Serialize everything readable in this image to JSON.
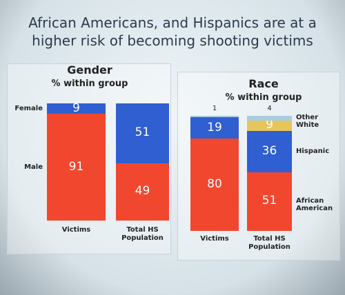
{
  "title": "African Americans, and Hispanics are at a higher risk of becoming shooting victims",
  "chart_data": [
    {
      "type": "bar",
      "stacked": true,
      "title": "Gender",
      "subtitle": "% within group",
      "categories": [
        "Victims",
        "Total HS Population"
      ],
      "legend": "left",
      "series": [
        {
          "name": "Male",
          "color": "#f2472f",
          "values": [
            91,
            49
          ]
        },
        {
          "name": "Female",
          "color": "#2f5fd0",
          "values": [
            9,
            51
          ]
        }
      ]
    },
    {
      "type": "bar",
      "stacked": true,
      "title": "Race",
      "subtitle": "% within group",
      "categories": [
        "Victims",
        "Total HS Population"
      ],
      "legend": "right",
      "series": [
        {
          "name": "African American",
          "color": "#f2472f",
          "values": [
            80,
            51
          ]
        },
        {
          "name": "Hispanic",
          "color": "#2f5fd0",
          "values": [
            19,
            36
          ]
        },
        {
          "name": "White",
          "color": "#e6c65a",
          "values": [
            null,
            9
          ]
        },
        {
          "name": "Other",
          "color": "#a9cde0",
          "values": [
            1,
            4
          ]
        }
      ]
    }
  ]
}
